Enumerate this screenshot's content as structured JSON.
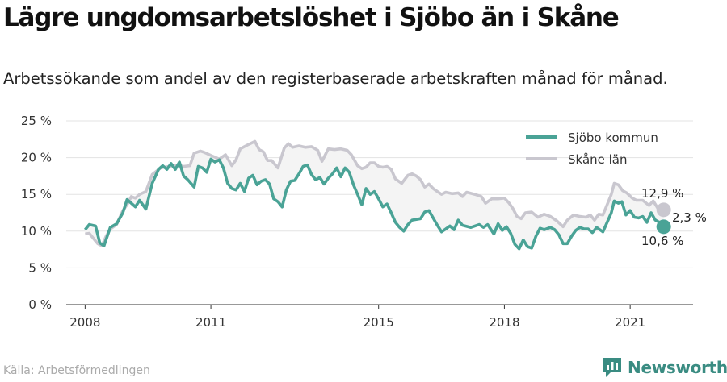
{
  "title": "Lägre ungdomsarbetslöshet i Sjöbo än i Skåne",
  "subtitle": "Arbetssökande som andel av den registerbaserade arbetskraften månad för månad.",
  "source": "Källa: Arbetsförmedlingen",
  "brand": {
    "name": "Newsworthy",
    "logo_icon": "newsworthy-logo-icon"
  },
  "colors": {
    "sjobo": "#4aa396",
    "skane": "#c9c7cf",
    "band": "#f4f4f4",
    "grid": "#e3e3e3"
  },
  "labels": {
    "end_sjobo": "10,6 %",
    "end_skane": "12,9 %",
    "difference": "2,3 %"
  },
  "chart_data": {
    "type": "line",
    "title": "Lägre ungdomsarbetslöshet i Sjöbo än i Skåne",
    "ylabel": "",
    "xlabel": "",
    "ylim": [
      0,
      25
    ],
    "xlim": [
      2007.55,
      2022.5
    ],
    "grid": true,
    "legend_placement": "top-right",
    "y_ticks": [
      0,
      5,
      10,
      15,
      20,
      25
    ],
    "y_tick_labels": [
      "0 %",
      "5 %",
      "10 %",
      "15 %",
      "20 %",
      "25 %"
    ],
    "x_ticks": [
      2008,
      2011,
      2015,
      2018,
      2021
    ],
    "x_tick_labels": [
      "2008",
      "2011",
      "2015",
      "2018",
      "2021"
    ],
    "series": [
      {
        "name": "Sjöbo kommun",
        "color": "#4aa396",
        "points": [
          [
            2008.0,
            10.2
          ],
          [
            2008.1,
            10.9
          ],
          [
            2008.25,
            10.7
          ],
          [
            2008.35,
            8.4
          ],
          [
            2008.45,
            8.0
          ],
          [
            2008.6,
            10.5
          ],
          [
            2008.75,
            11.0
          ],
          [
            2008.9,
            12.5
          ],
          [
            2009.0,
            14.3
          ],
          [
            2009.1,
            13.8
          ],
          [
            2009.2,
            13.3
          ],
          [
            2009.3,
            14.2
          ],
          [
            2009.45,
            13.0
          ],
          [
            2009.6,
            16.5
          ],
          [
            2009.75,
            18.4
          ],
          [
            2009.85,
            18.9
          ],
          [
            2009.95,
            18.4
          ],
          [
            2010.05,
            19.2
          ],
          [
            2010.15,
            18.4
          ],
          [
            2010.25,
            19.4
          ],
          [
            2010.35,
            17.5
          ],
          [
            2010.45,
            17.0
          ],
          [
            2010.6,
            16.0
          ],
          [
            2010.7,
            18.8
          ],
          [
            2010.8,
            18.6
          ],
          [
            2010.9,
            18.0
          ],
          [
            2011.0,
            19.8
          ],
          [
            2011.1,
            19.4
          ],
          [
            2011.2,
            19.7
          ],
          [
            2011.3,
            18.6
          ],
          [
            2011.4,
            16.5
          ],
          [
            2011.5,
            15.8
          ],
          [
            2011.6,
            15.6
          ],
          [
            2011.7,
            16.5
          ],
          [
            2011.8,
            15.4
          ],
          [
            2011.9,
            17.2
          ],
          [
            2012.0,
            17.6
          ],
          [
            2012.1,
            16.3
          ],
          [
            2012.2,
            16.8
          ],
          [
            2012.3,
            17.0
          ],
          [
            2012.4,
            16.4
          ],
          [
            2012.5,
            14.4
          ],
          [
            2012.6,
            14.0
          ],
          [
            2012.7,
            13.3
          ],
          [
            2012.8,
            15.6
          ],
          [
            2012.9,
            16.8
          ],
          [
            2013.0,
            16.9
          ],
          [
            2013.1,
            17.8
          ],
          [
            2013.2,
            18.8
          ],
          [
            2013.3,
            19.0
          ],
          [
            2013.4,
            17.7
          ],
          [
            2013.5,
            17.0
          ],
          [
            2013.6,
            17.3
          ],
          [
            2013.7,
            16.4
          ],
          [
            2013.8,
            17.2
          ],
          [
            2013.9,
            17.8
          ],
          [
            2014.0,
            18.6
          ],
          [
            2014.1,
            17.4
          ],
          [
            2014.2,
            18.6
          ],
          [
            2014.3,
            18.0
          ],
          [
            2014.4,
            16.3
          ],
          [
            2014.5,
            15.0
          ],
          [
            2014.6,
            13.6
          ],
          [
            2014.7,
            15.8
          ],
          [
            2014.8,
            15.0
          ],
          [
            2014.9,
            15.4
          ],
          [
            2015.0,
            14.4
          ],
          [
            2015.1,
            13.3
          ],
          [
            2015.2,
            13.7
          ],
          [
            2015.3,
            12.5
          ],
          [
            2015.4,
            11.2
          ],
          [
            2015.5,
            10.5
          ],
          [
            2015.6,
            10.0
          ],
          [
            2015.7,
            10.9
          ],
          [
            2015.8,
            11.5
          ],
          [
            2015.9,
            11.6
          ],
          [
            2016.0,
            11.7
          ],
          [
            2016.1,
            12.6
          ],
          [
            2016.2,
            12.8
          ],
          [
            2016.3,
            11.8
          ],
          [
            2016.4,
            10.8
          ],
          [
            2016.5,
            9.9
          ],
          [
            2016.6,
            10.3
          ],
          [
            2016.7,
            10.7
          ],
          [
            2016.8,
            10.2
          ],
          [
            2016.9,
            11.5
          ],
          [
            2017.0,
            10.8
          ],
          [
            2017.2,
            10.5
          ],
          [
            2017.4,
            10.9
          ],
          [
            2017.5,
            10.5
          ],
          [
            2017.6,
            10.9
          ],
          [
            2017.75,
            9.6
          ],
          [
            2017.85,
            11.0
          ],
          [
            2017.95,
            10.1
          ],
          [
            2018.05,
            10.6
          ],
          [
            2018.15,
            9.7
          ],
          [
            2018.25,
            8.2
          ],
          [
            2018.35,
            7.6
          ],
          [
            2018.45,
            8.8
          ],
          [
            2018.55,
            7.9
          ],
          [
            2018.65,
            7.7
          ],
          [
            2018.75,
            9.3
          ],
          [
            2018.85,
            10.4
          ],
          [
            2018.95,
            10.2
          ],
          [
            2019.1,
            10.5
          ],
          [
            2019.2,
            10.2
          ],
          [
            2019.3,
            9.5
          ],
          [
            2019.4,
            8.3
          ],
          [
            2019.5,
            8.3
          ],
          [
            2019.6,
            9.3
          ],
          [
            2019.7,
            10.1
          ],
          [
            2019.8,
            10.5
          ],
          [
            2019.9,
            10.3
          ],
          [
            2020.0,
            10.3
          ],
          [
            2020.1,
            9.8
          ],
          [
            2020.2,
            10.5
          ],
          [
            2020.35,
            9.9
          ],
          [
            2020.45,
            11.2
          ],
          [
            2020.55,
            12.5
          ],
          [
            2020.62,
            14.1
          ],
          [
            2020.72,
            13.8
          ],
          [
            2020.8,
            14.0
          ],
          [
            2020.9,
            12.2
          ],
          [
            2021.0,
            12.8
          ],
          [
            2021.1,
            11.9
          ],
          [
            2021.2,
            11.8
          ],
          [
            2021.3,
            12.0
          ],
          [
            2021.4,
            11.2
          ],
          [
            2021.5,
            12.5
          ],
          [
            2021.6,
            11.5
          ],
          [
            2021.7,
            11.2
          ],
          [
            2021.8,
            10.6
          ]
        ]
      },
      {
        "name": "Skåne län",
        "color": "#c9c7cf",
        "points": [
          [
            2008.0,
            9.6
          ],
          [
            2008.1,
            9.7
          ],
          [
            2008.2,
            9.0
          ],
          [
            2008.3,
            8.3
          ],
          [
            2008.4,
            8.0
          ],
          [
            2008.5,
            9.3
          ],
          [
            2008.6,
            10.3
          ],
          [
            2008.75,
            10.9
          ],
          [
            2008.9,
            12.8
          ],
          [
            2009.0,
            13.6
          ],
          [
            2009.1,
            14.7
          ],
          [
            2009.2,
            14.5
          ],
          [
            2009.3,
            15.0
          ],
          [
            2009.45,
            15.4
          ],
          [
            2009.6,
            17.7
          ],
          [
            2009.8,
            18.6
          ],
          [
            2010.0,
            18.8
          ],
          [
            2010.2,
            19.0
          ],
          [
            2010.35,
            18.8
          ],
          [
            2010.5,
            18.9
          ],
          [
            2010.6,
            20.6
          ],
          [
            2010.75,
            20.9
          ],
          [
            2010.85,
            20.7
          ],
          [
            2011.0,
            20.3
          ],
          [
            2011.2,
            19.8
          ],
          [
            2011.35,
            20.4
          ],
          [
            2011.5,
            18.9
          ],
          [
            2011.6,
            19.7
          ],
          [
            2011.7,
            21.2
          ],
          [
            2011.8,
            21.5
          ],
          [
            2011.9,
            21.8
          ],
          [
            2012.05,
            22.2
          ],
          [
            2012.15,
            21.1
          ],
          [
            2012.25,
            20.8
          ],
          [
            2012.35,
            19.6
          ],
          [
            2012.45,
            19.6
          ],
          [
            2012.6,
            18.6
          ],
          [
            2012.75,
            21.3
          ],
          [
            2012.85,
            21.9
          ],
          [
            2012.95,
            21.4
          ],
          [
            2013.1,
            21.6
          ],
          [
            2013.25,
            21.4
          ],
          [
            2013.4,
            21.5
          ],
          [
            2013.55,
            21.0
          ],
          [
            2013.65,
            19.5
          ],
          [
            2013.8,
            21.2
          ],
          [
            2013.95,
            21.1
          ],
          [
            2014.1,
            21.2
          ],
          [
            2014.25,
            21.0
          ],
          [
            2014.35,
            20.4
          ],
          [
            2014.5,
            18.9
          ],
          [
            2014.6,
            18.5
          ],
          [
            2014.7,
            18.7
          ],
          [
            2014.8,
            19.3
          ],
          [
            2014.9,
            19.3
          ],
          [
            2015.0,
            18.8
          ],
          [
            2015.1,
            18.7
          ],
          [
            2015.2,
            18.8
          ],
          [
            2015.3,
            18.4
          ],
          [
            2015.4,
            17.1
          ],
          [
            2015.55,
            16.5
          ],
          [
            2015.7,
            17.6
          ],
          [
            2015.8,
            17.8
          ],
          [
            2015.9,
            17.5
          ],
          [
            2016.0,
            17.0
          ],
          [
            2016.1,
            16.0
          ],
          [
            2016.2,
            16.4
          ],
          [
            2016.3,
            15.8
          ],
          [
            2016.4,
            15.4
          ],
          [
            2016.5,
            15.0
          ],
          [
            2016.6,
            15.3
          ],
          [
            2016.75,
            15.1
          ],
          [
            2016.9,
            15.2
          ],
          [
            2017.0,
            14.7
          ],
          [
            2017.1,
            15.3
          ],
          [
            2017.3,
            15.0
          ],
          [
            2017.45,
            14.7
          ],
          [
            2017.55,
            13.8
          ],
          [
            2017.7,
            14.4
          ],
          [
            2017.85,
            14.4
          ],
          [
            2018.0,
            14.5
          ],
          [
            2018.1,
            13.9
          ],
          [
            2018.2,
            13.1
          ],
          [
            2018.3,
            12.0
          ],
          [
            2018.4,
            11.7
          ],
          [
            2018.5,
            12.5
          ],
          [
            2018.65,
            12.6
          ],
          [
            2018.8,
            11.9
          ],
          [
            2018.95,
            12.3
          ],
          [
            2019.1,
            12.0
          ],
          [
            2019.25,
            11.4
          ],
          [
            2019.4,
            10.6
          ],
          [
            2019.5,
            11.5
          ],
          [
            2019.65,
            12.2
          ],
          [
            2019.8,
            12.0
          ],
          [
            2019.95,
            11.9
          ],
          [
            2020.05,
            12.2
          ],
          [
            2020.15,
            11.5
          ],
          [
            2020.25,
            12.3
          ],
          [
            2020.35,
            12.2
          ],
          [
            2020.45,
            13.6
          ],
          [
            2020.55,
            15.0
          ],
          [
            2020.62,
            16.5
          ],
          [
            2020.72,
            16.3
          ],
          [
            2020.82,
            15.5
          ],
          [
            2020.92,
            15.2
          ],
          [
            2021.05,
            14.5
          ],
          [
            2021.15,
            14.2
          ],
          [
            2021.3,
            14.2
          ],
          [
            2021.45,
            13.5
          ],
          [
            2021.55,
            14.1
          ],
          [
            2021.65,
            13.2
          ],
          [
            2021.8,
            12.9
          ]
        ]
      }
    ]
  }
}
